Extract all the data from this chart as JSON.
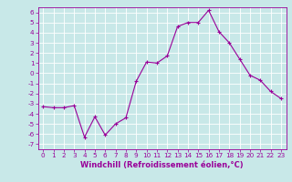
{
  "x": [
    0,
    1,
    2,
    3,
    4,
    5,
    6,
    7,
    8,
    9,
    10,
    11,
    12,
    13,
    14,
    15,
    16,
    17,
    18,
    19,
    20,
    21,
    22,
    23
  ],
  "y": [
    -3.3,
    -3.4,
    -3.4,
    -3.2,
    -6.3,
    -4.3,
    -6.1,
    -5.0,
    -4.4,
    -0.8,
    1.1,
    1.0,
    1.7,
    4.6,
    5.0,
    5.0,
    6.2,
    4.1,
    3.0,
    1.4,
    -0.2,
    -0.7,
    -1.8,
    -2.5
  ],
  "xlabel": "Windchill (Refroidissement éolien,°C)",
  "xlim": [
    -0.5,
    23.5
  ],
  "ylim": [
    -7.5,
    6.5
  ],
  "yticks": [
    -7,
    -6,
    -5,
    -4,
    -3,
    -2,
    -1,
    0,
    1,
    2,
    3,
    4,
    5,
    6
  ],
  "xticks": [
    0,
    1,
    2,
    3,
    4,
    5,
    6,
    7,
    8,
    9,
    10,
    11,
    12,
    13,
    14,
    15,
    16,
    17,
    18,
    19,
    20,
    21,
    22,
    23
  ],
  "line_color": "#990099",
  "marker": "+",
  "bg_color": "#c8e8e8",
  "grid_color": "#ffffff",
  "tick_color": "#990099",
  "label_color": "#990099",
  "xlabel_fontsize": 6.0,
  "tick_fontsize": 5.2,
  "linewidth": 0.8,
  "markersize": 3.5,
  "markeredgewidth": 0.8
}
